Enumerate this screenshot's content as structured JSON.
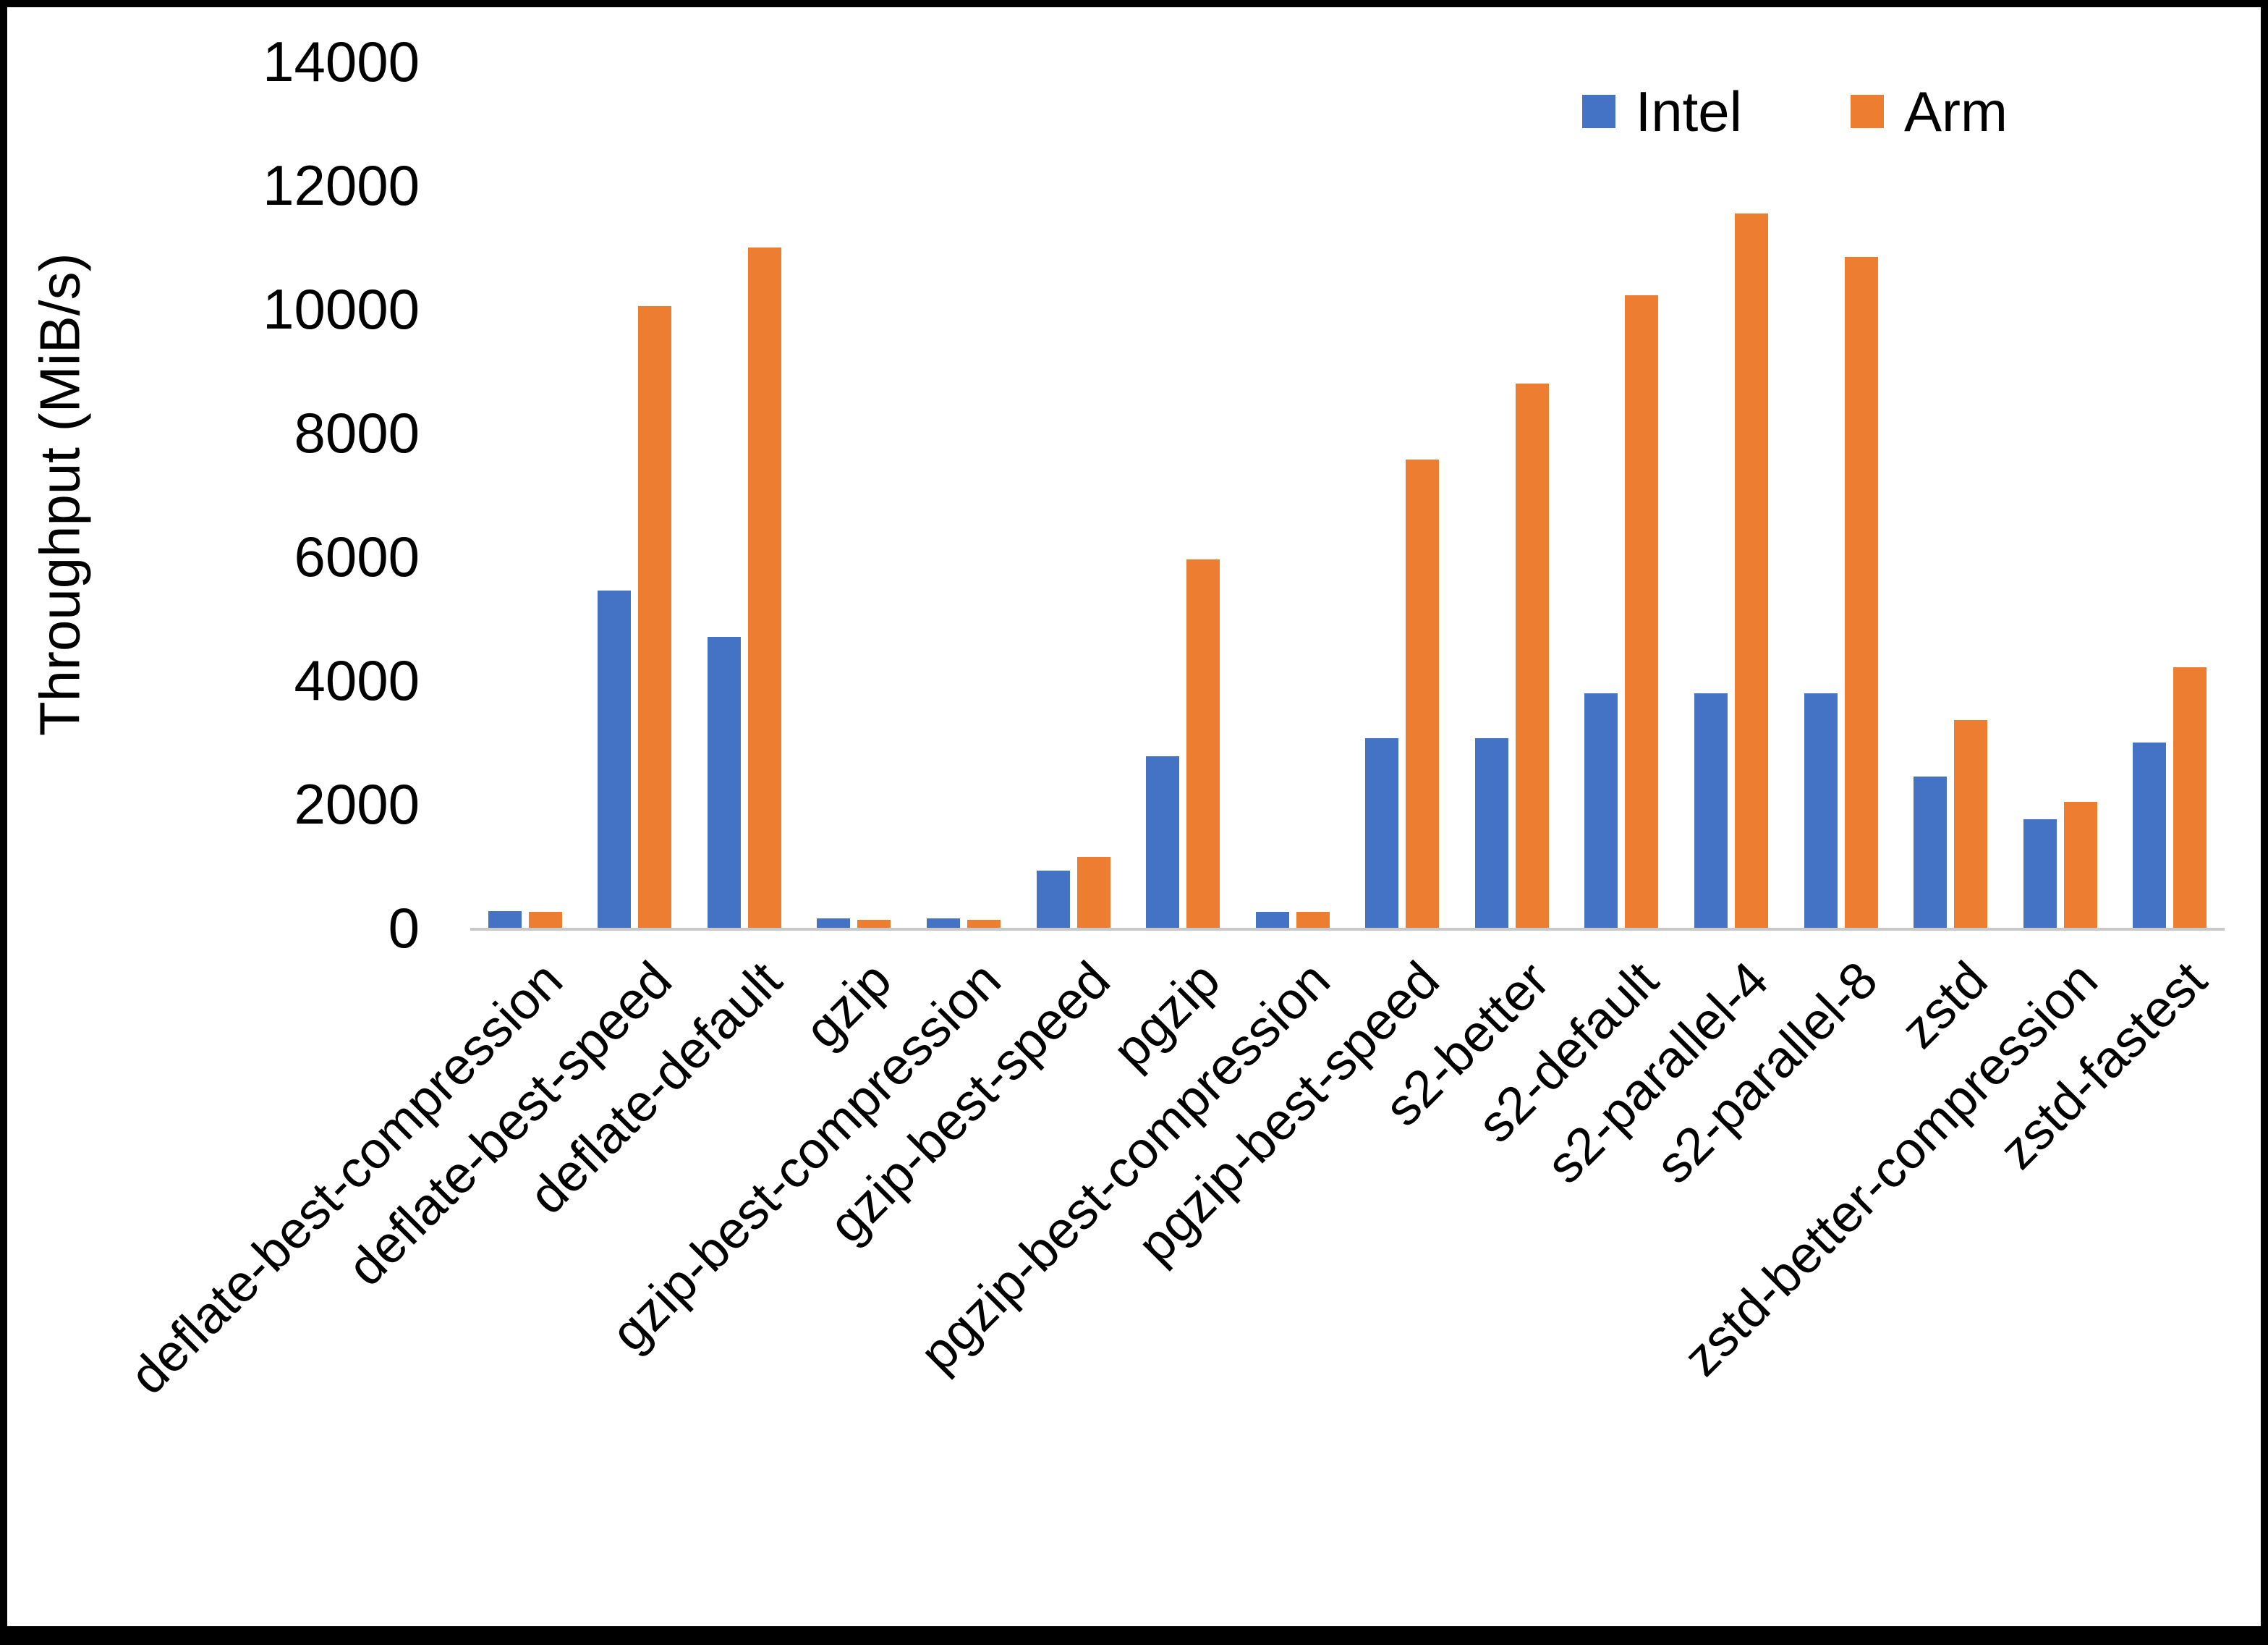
{
  "chart_data": {
    "type": "bar",
    "title": "",
    "xlabel": "",
    "ylabel": "Throughput (MiB/s)",
    "ylim": [
      0,
      14000
    ],
    "yticks": [
      0,
      2000,
      4000,
      6000,
      8000,
      10000,
      12000,
      14000
    ],
    "grid": false,
    "legend_position": "top-right",
    "categories": [
      "deflate-best-compression",
      "deflate-best-speed",
      "deflate-default",
      "gzip",
      "gzip-best-compression",
      "gzip-best-speed",
      "pgzip",
      "pgzip-best-compression",
      "pgzip-best-speed",
      "s2-better",
      "s2-default",
      "s2-parallel-4",
      "s2-parallel-8",
      "zstd",
      "zstd-better-compression",
      "zstd-fastest"
    ],
    "series": [
      {
        "name": "Intel",
        "color": "#4472C4",
        "values": [
          270,
          5450,
          4700,
          150,
          150,
          930,
          2770,
          260,
          3060,
          3060,
          3790,
          3790,
          3790,
          2450,
          1750,
          3000
        ]
      },
      {
        "name": "Arm",
        "color": "#ED7D31",
        "values": [
          260,
          10050,
          11000,
          130,
          130,
          1150,
          5950,
          260,
          7570,
          8790,
          10220,
          11540,
          10840,
          3360,
          2040,
          4210
        ]
      }
    ]
  }
}
